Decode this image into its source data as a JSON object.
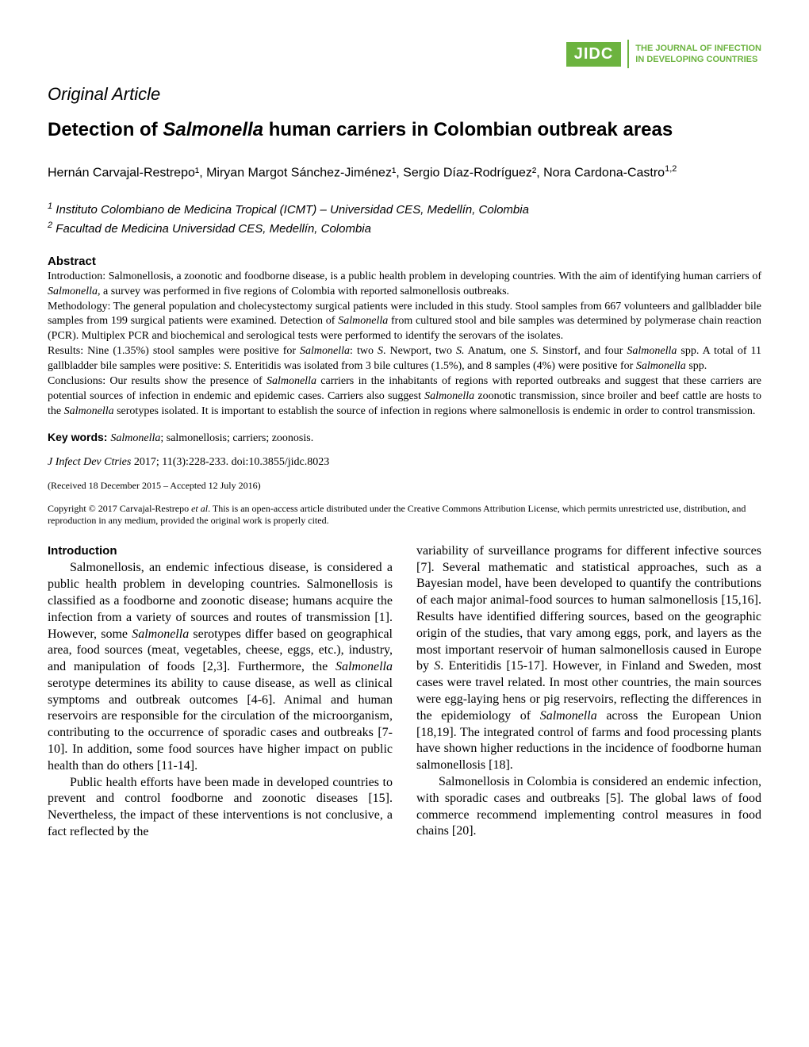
{
  "logo": {
    "abbrev": "JIDC",
    "line1": "THE JOURNAL OF INFECTION",
    "line2": "IN DEVELOPING COUNTRIES",
    "brand_color": "#6cb33f"
  },
  "article_type": "Original Article",
  "title_prefix": "Detection of ",
  "title_italic": "Salmonella",
  "title_suffix": " human carriers in Colombian outbreak areas",
  "authors": "Hernán Carvajal-Restrepo¹, Miryan Margot Sánchez-Jiménez¹, Sergio Díaz-Rodríguez², Nora Cardona-Castro",
  "authors_sup": "1,2",
  "affiliation1_sup": "1",
  "affiliation1": " Instituto Colombiano de Medicina Tropical (ICMT) – Universidad CES, Medellín, Colombia",
  "affiliation2_sup": "2",
  "affiliation2": " Facultad de Medicina Universidad CES, Medellín, Colombia",
  "abstract_heading": "Abstract",
  "abstract_intro": "Introduction: Salmonellosis, a zoonotic and foodborne disease, is a public health problem in developing countries. With the aim of identifying human carriers of ",
  "abstract_intro_italic": "Salmonella",
  "abstract_intro_end": ", a survey was performed in five regions of Colombia with reported salmonellosis outbreaks.",
  "abstract_method": "Methodology: The general population and cholecystectomy surgical patients were included in this study. Stool samples from 667 volunteers and gallbladder bile samples from 199 surgical patients were examined. Detection of ",
  "abstract_method_italic": "Salmonella",
  "abstract_method_end": " from cultured stool and bile samples was determined by polymerase chain reaction (PCR). Multiplex PCR and biochemical and serological tests were performed to identify the serovars of the isolates.",
  "abstract_results_a": "Results: Nine (1.35%) stool samples were positive for ",
  "abstract_results_b": "Salmonella",
  "abstract_results_c": ": two ",
  "abstract_results_d": "S",
  "abstract_results_e": ". Newport, two ",
  "abstract_results_f": "S.",
  "abstract_results_g": " Anatum, one ",
  "abstract_results_h": "S.",
  "abstract_results_i": " Sinstorf, and four ",
  "abstract_results_j": "Salmonella",
  "abstract_results_k": " spp. A total of 11 gallbladder bile samples were positive: ",
  "abstract_results_l": "S.",
  "abstract_results_m": " Enteritidis was isolated from 3 bile cultures (1.5%), and 8 samples (4%) were positive for ",
  "abstract_results_n": "Salmonella",
  "abstract_results_o": " spp.",
  "abstract_concl_a": "Conclusions: Our results show the presence of ",
  "abstract_concl_b": "Salmonella",
  "abstract_concl_c": " carriers in the inhabitants of regions with reported outbreaks and suggest that these carriers are potential sources of infection in endemic and epidemic cases. Carriers also suggest ",
  "abstract_concl_d": "Salmonella",
  "abstract_concl_e": " zoonotic transmission, since broiler and beef cattle are hosts to the ",
  "abstract_concl_f": "Salmonella",
  "abstract_concl_g": " serotypes isolated. It is important to establish the source of infection in regions where salmonellosis is endemic in order to control transmission.",
  "keywords_label": "Key words: ",
  "keywords_italic": "Salmonella",
  "keywords_rest": "; salmonellosis; carriers; zoonosis.",
  "citation_journal": "J Infect Dev Ctries",
  "citation_rest": " 2017; 11(3):228-233. doi:10.3855/jidc.8023",
  "dates": "(Received 18 December 2015 – Accepted 12 July 2016)",
  "copyright_a": "Copyright © 2017 Carvajal-Restrepo ",
  "copyright_b": "et al",
  "copyright_c": ". This is an open-access article distributed under the Creative Commons Attribution License, which permits unrestricted use, distribution, and reproduction in any medium, provided the original work is properly cited.",
  "intro_heading": "Introduction",
  "col1_p1_a": "Salmonellosis, an endemic infectious disease, is considered a public health problem in developing countries. Salmonellosis is classified as a foodborne and zoonotic disease; humans acquire the infection from a variety of sources and routes of transmission [1]. However, some ",
  "col1_p1_b": "Salmonella",
  "col1_p1_c": " serotypes differ based on geographical area, food sources (meat, vegetables, cheese, eggs, etc.), industry, and manipulation of foods [2,3]. Furthermore, the ",
  "col1_p1_d": "Salmonella",
  "col1_p1_e": " serotype determines its ability to cause disease, as well as clinical symptoms and outbreak outcomes [4-6]. Animal and human reservoirs are responsible for the circulation of the microorganism, contributing to the occurrence of sporadic cases and outbreaks [7-10]. In addition, some food sources have higher impact on public health than do others [11-14].",
  "col1_p2": "Public health efforts have been made in developed countries to prevent and control foodborne and zoonotic diseases [15]. Nevertheless, the impact of these interventions is not conclusive, a fact reflected by the",
  "col2_p1_a": "variability of surveillance programs for different infective sources [7]. Several mathematic and statistical approaches, such as a Bayesian model, have been developed to quantify the contributions of each major animal-food sources to human salmonellosis [15,16]. Results have identified differing sources, based on the geographic origin of the studies, that vary among eggs, pork, and layers as the most important reservoir of human salmonellosis caused in Europe by ",
  "col2_p1_b": "S",
  "col2_p1_c": ". Enteritidis [15-17]. However, in Finland and Sweden, most cases were travel related. In most other countries, the main sources were egg-laying hens or pig reservoirs, reflecting the differences in the epidemiology of ",
  "col2_p1_d": "Salmonella",
  "col2_p1_e": " across the European Union [18,19]. The integrated control of farms and food processing plants have shown higher reductions in the incidence of foodborne human salmonellosis [18].",
  "col2_p2": "Salmonellosis in Colombia is considered an endemic infection, with sporadic cases and outbreaks [5]. The global laws of food commerce recommend implementing control measures in food chains [20]."
}
